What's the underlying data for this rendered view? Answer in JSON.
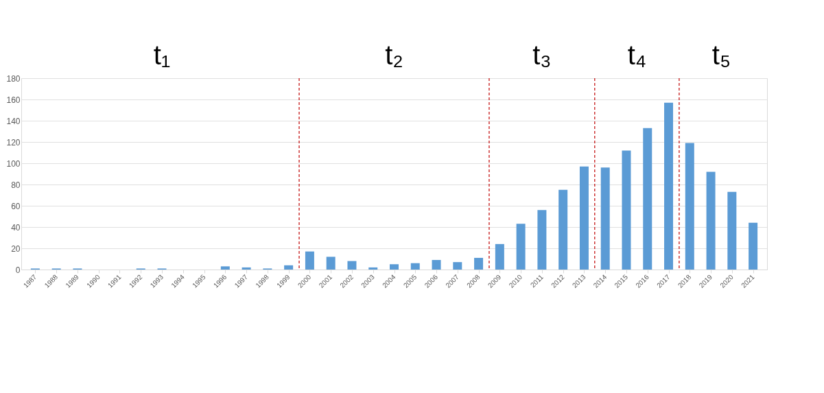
{
  "chart_data": {
    "type": "bar",
    "x": [
      1987,
      1988,
      1989,
      1990,
      1991,
      1992,
      1993,
      1994,
      1995,
      1996,
      1997,
      1998,
      1999,
      2000,
      2001,
      2002,
      2003,
      2004,
      2005,
      2006,
      2007,
      2008,
      2009,
      2010,
      2011,
      2012,
      2013,
      2014,
      2015,
      2016,
      2017,
      2018,
      2019,
      2020,
      2021
    ],
    "values": [
      1,
      1,
      1,
      0,
      0,
      1,
      1,
      0,
      0,
      3,
      2,
      1,
      4,
      17,
      12,
      8,
      2,
      5,
      6,
      9,
      7,
      11,
      24,
      43,
      56,
      75,
      97,
      96,
      112,
      133,
      157,
      119,
      92,
      73,
      44
    ],
    "color": "#5b9bd5",
    "xlim": [
      1986.5,
      2021.5
    ],
    "xticks": [
      1987,
      1988,
      1989,
      1990,
      1991,
      1992,
      1993,
      1994,
      1995,
      1996,
      1997,
      1998,
      1999,
      2000,
      2001,
      2002,
      2003,
      2004,
      2005,
      2006,
      2007,
      2008,
      2009,
      2010,
      2011,
      2012,
      2013,
      2014,
      2015,
      2016,
      2017,
      2018,
      2019,
      2020,
      2021
    ],
    "ylim": [
      0,
      180
    ],
    "yticks": [
      0,
      20,
      40,
      60,
      80,
      100,
      120,
      140,
      160,
      180
    ],
    "grid": "y",
    "ref_lines": [
      {
        "axis": "x",
        "value": 1999.5,
        "color": "#c00000",
        "line_style": "dashed"
      },
      {
        "axis": "x",
        "value": 2008.5,
        "color": "#c00000",
        "line_style": "dashed"
      },
      {
        "axis": "x",
        "value": 2013.5,
        "color": "#c00000",
        "line_style": "dashed"
      },
      {
        "axis": "x",
        "value": 2017.5,
        "color": "#c00000",
        "line_style": "dashed"
      }
    ],
    "annotations": [
      "t₁",
      "t₂",
      "t₃",
      "t₄",
      "t₅"
    ]
  }
}
